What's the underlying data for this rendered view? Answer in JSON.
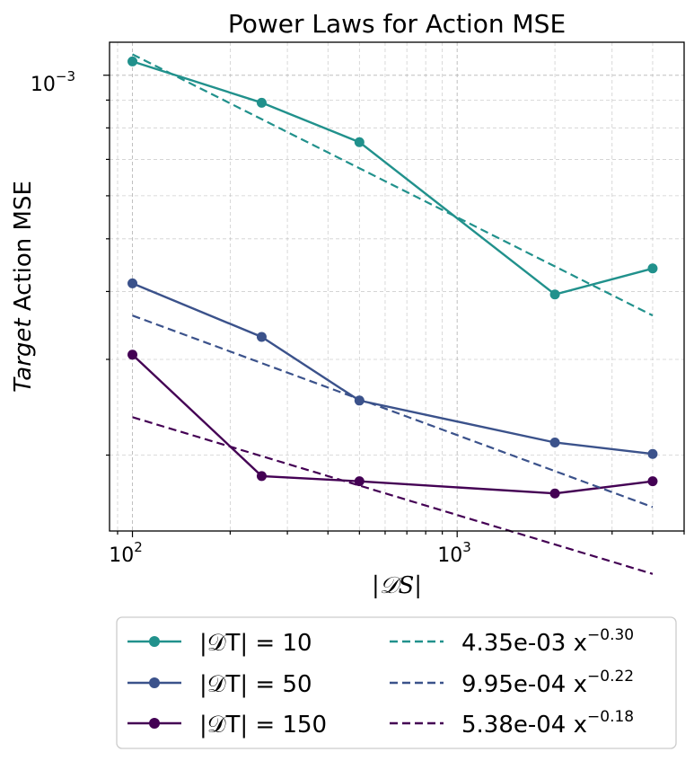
{
  "chart_data": {
    "type": "line",
    "title": "Power Laws for Action MSE",
    "xlabel_text": "|𝒟S|",
    "ylabel_italic": "Target",
    "ylabel_rest": " Action MSE",
    "xscale": "log",
    "yscale": "log",
    "xlim": [
      85,
      5000
    ],
    "ylim": [
      0.000145,
      0.00115
    ],
    "grid": true,
    "legend_position": "below",
    "x_ticks": [
      {
        "value": 100,
        "base": "10",
        "exp": "2"
      },
      {
        "value": 1000,
        "base": "10",
        "exp": "3"
      }
    ],
    "y_ticks": [
      {
        "value": 0.001,
        "base": "10",
        "exp": "−3"
      }
    ],
    "series": [
      {
        "name": "|𝒟T| = 10",
        "color": "#21918c",
        "style": "solid-marker",
        "x": [
          100,
          250,
          500,
          2000,
          4000
        ],
        "y": [
          0.00106,
          0.00089,
          0.000753,
          0.000395,
          0.000441
        ]
      },
      {
        "name": "|𝒟T| = 50",
        "color": "#3b528b",
        "style": "solid-marker",
        "x": [
          100,
          250,
          500,
          2000,
          4000
        ],
        "y": [
          0.000414,
          0.00033,
          0.000252,
          0.000211,
          0.000201
        ]
      },
      {
        "name": "|𝒟T| = 150",
        "color": "#440154",
        "style": "solid-marker",
        "x": [
          100,
          250,
          500,
          2000,
          4000
        ],
        "y": [
          0.000306,
          0.000183,
          0.000179,
          0.00017,
          0.000179
        ]
      },
      {
        "name": "4.35e-03 x",
        "exp": "−0.30",
        "color": "#21918c",
        "style": "dashed",
        "coef": 0.00435,
        "power": -0.3,
        "x": [
          100,
          4000
        ]
      },
      {
        "name": "9.95e-04 x",
        "exp": "−0.22",
        "color": "#3b528b",
        "style": "dashed",
        "coef": 0.000995,
        "power": -0.22,
        "x": [
          100,
          4000
        ]
      },
      {
        "name": "5.38e-04 x",
        "exp": "−0.18",
        "color": "#440154",
        "style": "dashed",
        "coef": 0.000538,
        "power": -0.18,
        "x": [
          100,
          4000
        ]
      }
    ]
  }
}
